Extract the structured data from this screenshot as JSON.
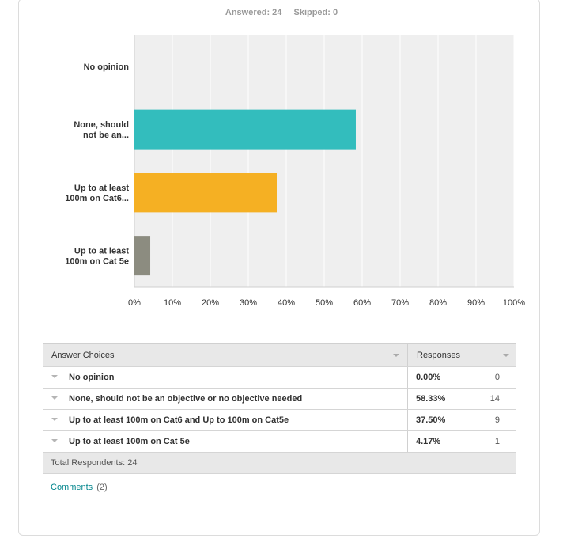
{
  "summary": {
    "answered": "Answered: 24",
    "skipped": "Skipped: 0"
  },
  "chart_data": {
    "type": "bar",
    "orientation": "horizontal",
    "categories": [
      "No opinion",
      "None, should not be an...",
      "Up to at least 100m on Cat6...",
      "Up to at least 100m on Cat 5e"
    ],
    "category_lines": [
      [
        "No opinion"
      ],
      [
        "None, should",
        "not be an..."
      ],
      [
        "Up to at least",
        "100m on Cat6..."
      ],
      [
        "Up to at least",
        "100m on Cat 5e"
      ]
    ],
    "values": [
      0.0,
      58.33,
      37.5,
      4.17
    ],
    "colors": [
      "#33bdbd",
      "#33bdbd",
      "#f5b023",
      "#8c8c80"
    ],
    "xlim": [
      0,
      100
    ],
    "xticks": [
      "0%",
      "10%",
      "20%",
      "30%",
      "40%",
      "50%",
      "60%",
      "70%",
      "80%",
      "90%",
      "100%"
    ],
    "grid": true,
    "background": "#efefef"
  },
  "table": {
    "headers": {
      "choices": "Answer Choices",
      "responses": "Responses"
    },
    "rows": [
      {
        "choice": "No opinion",
        "pct": "0.00%",
        "count": "0"
      },
      {
        "choice": "None, should not be an objective or no objective needed",
        "pct": "58.33%",
        "count": "14"
      },
      {
        "choice": "Up to at least 100m on Cat6 and Up to 100m on Cat5e",
        "pct": "37.50%",
        "count": "9"
      },
      {
        "choice": "Up to at least 100m on Cat 5e",
        "pct": "4.17%",
        "count": "1"
      }
    ],
    "total": "Total Respondents: 24"
  },
  "comments": {
    "label": "Comments",
    "count": "(2)"
  }
}
